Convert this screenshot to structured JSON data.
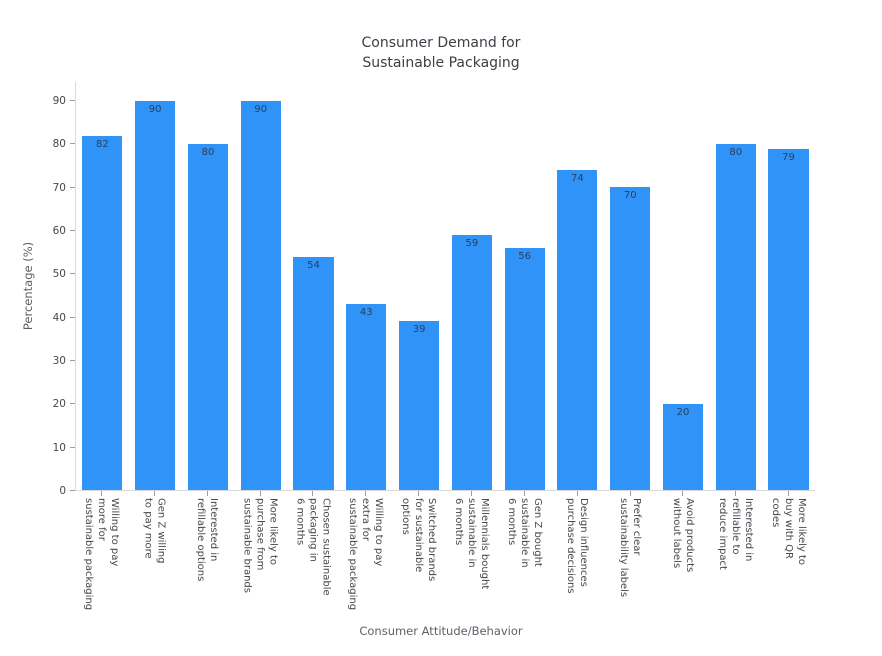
{
  "chart_data": {
    "type": "bar",
    "title": "Consumer Demand for\nSustainable Packaging",
    "xlabel": "Consumer Attitude/Behavior",
    "ylabel": "Percentage (%)",
    "categories": [
      "Willing to pay\nmore for\nsustainable packaging",
      "Gen Z willing\nto pay more",
      "Interested in\nrefillable options",
      "More likely to\npurchase from\nsustainable brands",
      "Chosen sustainable\npackaging in\n6 months",
      "Willing to pay\nextra for\nsustainable packaging",
      "Switched brands\nfor sustainable\noptions",
      "Millennials bought\nsustainable in\n6 months",
      "Gen Z bought\nsustainable in\n6 months",
      "Design influences\npurchase decisions",
      "Prefer clear\nsustainability labels",
      "Avoid products\nwithout labels",
      "Interested in\nrefillable to\nreduce impact",
      "More likely to\nbuy with QR\ncodes"
    ],
    "values": [
      82,
      90,
      80,
      90,
      54,
      43,
      39,
      59,
      56,
      74,
      70,
      20,
      80,
      79
    ],
    "yticks": [
      0,
      10,
      20,
      30,
      40,
      50,
      60,
      70,
      80,
      90
    ],
    "ylim": [
      0,
      94.4
    ],
    "grid": false,
    "legend": "none",
    "colors": {
      "bar": "#2f93f7",
      "value_label": "#2a3f5f",
      "axis_line": "#d9d9de",
      "tick_mark": "#9b9ba3",
      "tick_label": "#47474e",
      "axis_title": "#5f5f69",
      "title": "#3e3e46",
      "background": "#ffffff"
    }
  }
}
